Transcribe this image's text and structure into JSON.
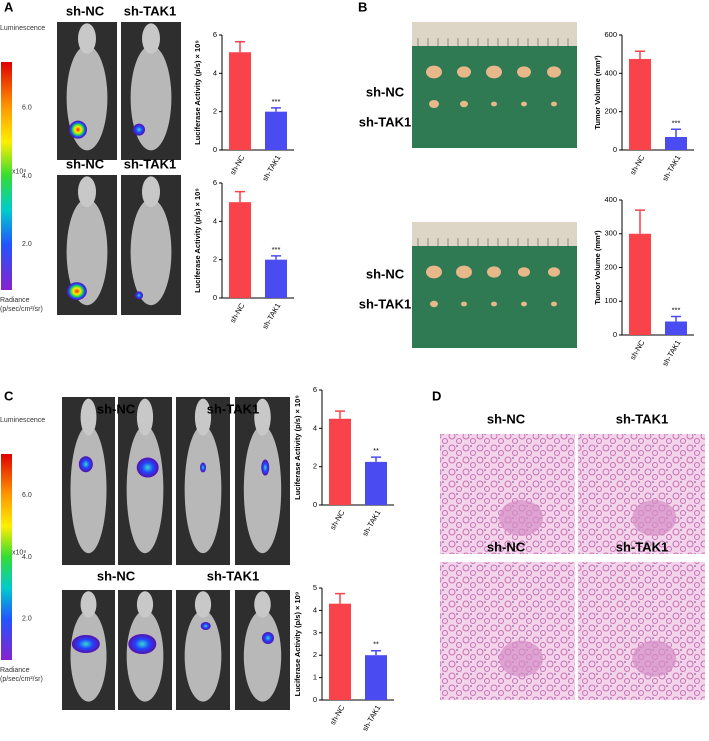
{
  "panel_labels": [
    "A",
    "B",
    "C",
    "D"
  ],
  "colorbars": [
    {
      "title": "Luminescence",
      "ticks": [
        "6.0",
        "4.0",
        "2.0"
      ],
      "scale": "x10⁹",
      "footer": [
        "Radiance",
        "(p/sec/cm²/sr)"
      ]
    },
    {
      "title": "Luminescence",
      "ticks": [
        "6.0",
        "4.0",
        "2.0"
      ],
      "scale": "x10⁹",
      "footer": [
        "Radiance",
        "(p/sec/cm²/sr)"
      ]
    }
  ],
  "image_labels": {
    "A": [
      [
        "sh-NC",
        "sh-TAK1"
      ],
      [
        "sh-NC",
        "sh-TAK1"
      ]
    ],
    "B": [
      [
        "sh-NC",
        "sh-TAK1"
      ],
      [
        "sh-NC",
        "sh-TAK1"
      ]
    ],
    "C": [
      [
        "sh-NC",
        "sh-TAK1"
      ],
      [
        "sh-NC",
        "sh-TAK1"
      ]
    ],
    "D": [
      [
        "sh-NC",
        "sh-TAK1"
      ],
      [
        "sh-NC",
        "sh-TAK1"
      ]
    ]
  },
  "chart_data": [
    {
      "type": "bar",
      "y_label": "Luciferase Activity (p/s) × 10⁹",
      "categories": [
        "sh-NC",
        "sh-TAK1"
      ],
      "values": [
        5.1,
        2.0
      ],
      "errors": [
        0.55,
        0.2
      ],
      "colors": [
        "#f8434a",
        "#4a4cf2"
      ],
      "annotation": "***",
      "ylim": [
        0,
        6
      ],
      "yticks": [
        0,
        2,
        4,
        6
      ]
    },
    {
      "type": "bar",
      "y_label": "Luciferase Activity (p/s) × 10⁹",
      "categories": [
        "sh-NC",
        "sh-TAK1"
      ],
      "values": [
        5.0,
        2.0
      ],
      "errors": [
        0.55,
        0.2
      ],
      "colors": [
        "#f8434a",
        "#4a4cf2"
      ],
      "annotation": "***",
      "ylim": [
        0,
        6
      ],
      "yticks": [
        0,
        2,
        4,
        6
      ]
    },
    {
      "type": "bar",
      "y_label": "Tumor Volume (mm³)",
      "categories": [
        "sh-NC",
        "sh-TAK1"
      ],
      "values": [
        475,
        68
      ],
      "errors": [
        40,
        40
      ],
      "colors": [
        "#f8434a",
        "#4a4cf2"
      ],
      "annotation": "***",
      "ylim": [
        0,
        600
      ],
      "yticks": [
        0,
        200,
        400,
        600
      ]
    },
    {
      "type": "bar",
      "y_label": "Tumor Volume (mm³)",
      "categories": [
        "sh-NC",
        "sh-TAK1"
      ],
      "values": [
        300,
        40
      ],
      "errors": [
        70,
        15
      ],
      "colors": [
        "#f8434a",
        "#4a4cf2"
      ],
      "annotation": "***",
      "ylim": [
        0,
        400
      ],
      "yticks": [
        0,
        100,
        200,
        300,
        400
      ]
    },
    {
      "type": "bar",
      "y_label": "Luciferase Activity (p/s) × 10⁹",
      "categories": [
        "sh-NC",
        "sh-TAK1"
      ],
      "values": [
        4.5,
        2.25
      ],
      "errors": [
        0.4,
        0.25
      ],
      "colors": [
        "#f8434a",
        "#4a4cf2"
      ],
      "annotation": "**",
      "ylim": [
        0,
        6
      ],
      "yticks": [
        0,
        2,
        4,
        6
      ]
    },
    {
      "type": "bar",
      "y_label": "Luciferase Activity (p/s) × 10⁹",
      "categories": [
        "sh-NC",
        "sh-TAK1"
      ],
      "values": [
        4.3,
        2.0
      ],
      "errors": [
        0.45,
        0.2
      ],
      "colors": [
        "#f8434a",
        "#4a4cf2"
      ],
      "annotation": "**",
      "ylim": [
        0,
        5
      ],
      "yticks": [
        0,
        1,
        2,
        3,
        4,
        5
      ]
    }
  ]
}
